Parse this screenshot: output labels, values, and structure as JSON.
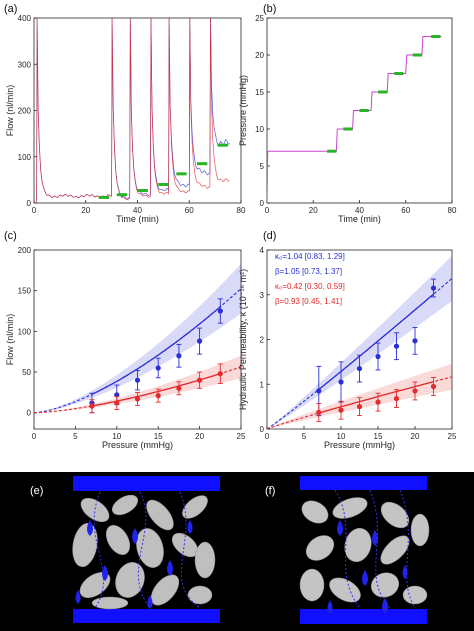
{
  "figure": {
    "panel_labels": [
      "(a)",
      "(b)",
      "(c)",
      "(d)",
      "(e)",
      "(f)"
    ]
  },
  "colors": {
    "blue": "#2a2fd6",
    "red": "#e32b2b",
    "green": "#27b427",
    "magenta": "#cc44cc",
    "black": "#000000"
  },
  "chart_data": [
    {
      "panel": "(a)",
      "type": "line",
      "xlabel": "Time (min)",
      "ylabel": "Flow (nl/min)",
      "xlim": [
        0,
        80
      ],
      "ylim": [
        0,
        400
      ],
      "xticks": [
        "0",
        "20",
        "40",
        "60",
        "80"
      ],
      "yticks": [
        "0",
        "100",
        "200",
        "300",
        "400"
      ],
      "grid": false,
      "series": [
        {
          "color": "blue",
          "step_times": [
            1,
            30,
            37,
            45,
            52,
            60,
            68
          ],
          "plateaus": [
            15,
            12,
            18,
            27,
            40,
            65,
            127
          ]
        },
        {
          "color": "red",
          "step_times": [
            1,
            30,
            37,
            45,
            52,
            60,
            68
          ],
          "plateaus": [
            15,
            10,
            14,
            20,
            26,
            35,
            47
          ]
        },
        {
          "color": "green",
          "plateau_marks": [
            [
              27,
              12
            ],
            [
              34,
              18
            ],
            [
              42,
              27
            ],
            [
              50,
              40
            ],
            [
              57,
              63
            ],
            [
              65,
              85
            ],
            [
              73,
              125
            ]
          ]
        }
      ]
    },
    {
      "panel": "(b)",
      "type": "line",
      "xlabel": "Time (min)",
      "ylabel": "Pressure (mmHg)",
      "xlim": [
        0,
        80
      ],
      "ylim": [
        0,
        25
      ],
      "xticks": [
        "0",
        "20",
        "40",
        "60",
        "80"
      ],
      "yticks": [
        "0",
        "5",
        "10",
        "15",
        "20",
        "25"
      ],
      "grid": false,
      "series": [
        {
          "color": "magenta",
          "steps": [
            [
              0,
              7
            ],
            [
              30,
              10
            ],
            [
              37,
              12.5
            ],
            [
              45,
              15
            ],
            [
              52,
              17.5
            ],
            [
              60,
              20
            ],
            [
              67,
              22.5
            ],
            [
              75,
              22.5
            ]
          ]
        },
        {
          "color": "green",
          "plateau_marks": [
            [
              28,
              7
            ],
            [
              35,
              10
            ],
            [
              42,
              12.5
            ],
            [
              50,
              15
            ],
            [
              57,
              17.5
            ],
            [
              65,
              20
            ],
            [
              73,
              22.5
            ]
          ]
        }
      ]
    },
    {
      "panel": "(c)",
      "type": "scatter",
      "xlabel": "Pressure (mmHg)",
      "ylabel": "Flow (nl/min)",
      "xlim": [
        0,
        25
      ],
      "ylim": [
        -20,
        200
      ],
      "xticks": [
        "0",
        "5",
        "10",
        "15",
        "20",
        "25"
      ],
      "yticks": [
        "0",
        "50",
        "100",
        "150",
        "200"
      ],
      "grid": false,
      "series": [
        {
          "color": "blue",
          "x": [
            7,
            10,
            12.5,
            15,
            17.5,
            20,
            22.5
          ],
          "y": [
            12,
            22,
            40,
            55,
            70,
            88,
            125
          ],
          "err": [
            12,
            12,
            12,
            12,
            14,
            16,
            15
          ],
          "fit": {
            "a": 1.22,
            "n": 1.5
          },
          "band": [
            0.8,
            1.2
          ]
        },
        {
          "color": "red",
          "x": [
            7,
            10,
            12.5,
            15,
            17.5,
            20,
            22.5
          ],
          "y": [
            8,
            12,
            17,
            21,
            30,
            40,
            48
          ],
          "err": [
            8,
            8,
            8,
            8,
            8,
            10,
            12
          ],
          "fit": {
            "a": 0.45,
            "n": 1.5
          },
          "band": [
            0.75,
            1.25
          ]
        }
      ]
    },
    {
      "panel": "(d)",
      "type": "scatter",
      "xlabel": "Pressure (mmHg)",
      "ylabel": "Hydraulic Permeability, κ (10⁻¹⁶ m²)",
      "xlim": [
        0,
        25
      ],
      "ylim": [
        0,
        4
      ],
      "xticks": [
        "0",
        "5",
        "10",
        "15",
        "20",
        "25"
      ],
      "yticks": [
        "0",
        "1",
        "2",
        "3",
        "4"
      ],
      "grid": false,
      "annotations": [
        {
          "text": "κ₀=1.04 [0.83, 1.29]",
          "color": "blue"
        },
        {
          "text": "β=1.05 [0.73, 1.37]",
          "color": "blue"
        },
        {
          "text": "κ₀=0.42 [0.30, 0.59]",
          "color": "red"
        },
        {
          "text": "β=0.93 [0.45, 1.41]",
          "color": "red"
        }
      ],
      "series": [
        {
          "color": "blue",
          "x": [
            7,
            10,
            12.5,
            15,
            17.5,
            20,
            22.5
          ],
          "y": [
            0.85,
            1.05,
            1.35,
            1.62,
            1.85,
            1.97,
            3.15
          ],
          "err": [
            0.55,
            0.45,
            0.3,
            0.3,
            0.3,
            0.3,
            0.2
          ],
          "fit": {
            "k0": 1.04,
            "beta": 1.05
          },
          "band": [
            0.85,
            1.15
          ]
        },
        {
          "color": "red",
          "x": [
            7,
            10,
            12.5,
            15,
            17.5,
            20,
            22.5
          ],
          "y": [
            0.37,
            0.42,
            0.5,
            0.6,
            0.68,
            0.85,
            0.95
          ],
          "err": [
            0.2,
            0.2,
            0.2,
            0.2,
            0.2,
            0.2,
            0.2
          ],
          "fit": {
            "k0": 0.42,
            "beta": 0.93
          },
          "band": [
            0.75,
            1.25
          ]
        }
      ]
    }
  ]
}
